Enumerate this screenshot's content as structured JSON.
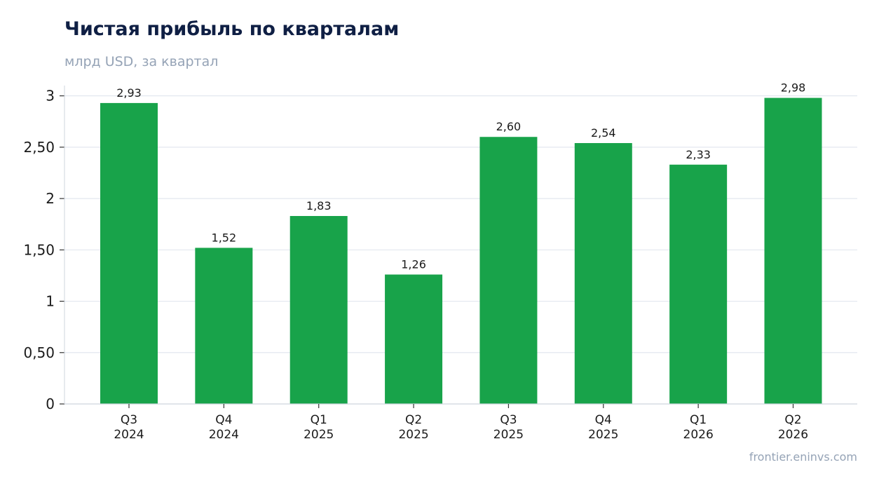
{
  "header": {
    "title": "Чистая прибыль по кварталам",
    "subtitle": "млрд USD, за квартал"
  },
  "footer": {
    "watermark": "frontier.eninvs.com"
  },
  "chart_data": {
    "type": "bar",
    "title": "Чистая прибыль по кварталам",
    "subtitle": "млрд USD, за квартал",
    "xlabel": "",
    "ylabel": "",
    "categories": [
      [
        "Q3",
        "2024"
      ],
      [
        "Q4",
        "2024"
      ],
      [
        "Q1",
        "2025"
      ],
      [
        "Q2",
        "2025"
      ],
      [
        "Q3",
        "2025"
      ],
      [
        "Q4",
        "2025"
      ],
      [
        "Q1",
        "2026"
      ],
      [
        "Q2",
        "2026"
      ]
    ],
    "values": [
      2.93,
      1.52,
      1.83,
      1.26,
      2.6,
      2.54,
      2.33,
      2.98
    ],
    "value_labels": [
      "2,93",
      "1,52",
      "1,83",
      "1,26",
      "2,60",
      "2,54",
      "2,33",
      "2,98"
    ],
    "ylim": [
      0,
      3.1
    ],
    "yticks": [
      0,
      0.5,
      1,
      1.5,
      2,
      2.5,
      3
    ],
    "ytick_labels": [
      "0",
      "0,50",
      "1",
      "1,50",
      "2",
      "2,50",
      "3"
    ],
    "grid": "horizontal",
    "legend": "none",
    "bar_color": "#18a34a",
    "grid_color": "#e3e7ef",
    "axis_color": "#cfd5de"
  }
}
